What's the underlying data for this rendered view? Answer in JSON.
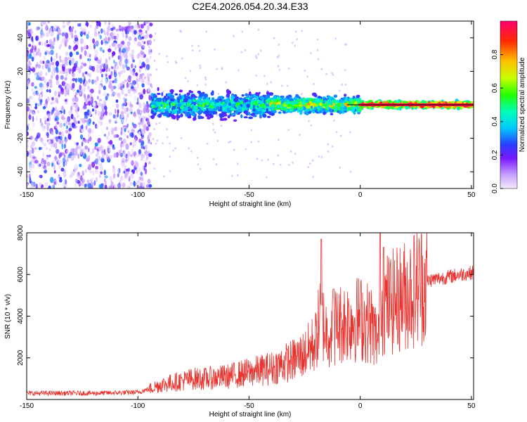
{
  "chart_data": [
    {
      "type": "heatmap",
      "title": "C2E4.2026.054.20.34.E33",
      "xlabel": "Height of straight line (km)",
      "ylabel": "Frequency (Hz)",
      "xlim": [
        -150,
        51
      ],
      "ylim": [
        -50,
        50
      ],
      "xticks": [
        "-150",
        "-100",
        "-50",
        "0",
        "50"
      ],
      "yticks": [
        "40",
        "20",
        "0",
        "-20",
        "-40"
      ],
      "colorbar": {
        "label": "Normalized spectral amplitude",
        "range": [
          0,
          1
        ],
        "ticks": [
          "0.0",
          "0.2",
          "0.4",
          "0.6",
          "0.8"
        ]
      },
      "regions": [
        {
          "name": "noise",
          "x_range": [
            -150,
            -94
          ],
          "freq_range": [
            -50,
            50
          ],
          "amplitude": 0.2
        },
        {
          "name": "onset",
          "x_range": [
            -94,
            -40
          ],
          "freq_half_width": 8,
          "amplitude": 0.45
        },
        {
          "name": "transition",
          "x_range": [
            -40,
            0
          ],
          "freq_half_width": 5,
          "amplitude": 0.6
        },
        {
          "name": "steady",
          "x_range": [
            0,
            51
          ],
          "freq_half_width": 2,
          "amplitude": 0.95
        }
      ]
    },
    {
      "type": "line",
      "xlabel": "Height of straight line (km)",
      "ylabel": "SNR (10 * v/v)",
      "xlim": [
        -150,
        51
      ],
      "ylim": [
        0,
        8000
      ],
      "xticks": [
        "-150",
        "-100",
        "-50",
        "0",
        "50"
      ],
      "yticks": [
        "2000",
        "4000",
        "6000",
        "8000"
      ],
      "color": "#e8332f",
      "series": [
        {
          "name": "SNR",
          "x": [
            -150,
            -140,
            -130,
            -120,
            -110,
            -100,
            -95,
            -90,
            -85,
            -80,
            -75,
            -70,
            -65,
            -60,
            -55,
            -50,
            -45,
            -40,
            -35,
            -30,
            -25,
            -20,
            -18,
            -15,
            -10,
            -5,
            0,
            5,
            8,
            10,
            15,
            20,
            25,
            30,
            35,
            40,
            45,
            51
          ],
          "y": [
            300,
            300,
            300,
            300,
            320,
            350,
            500,
            700,
            800,
            900,
            1000,
            1000,
            1050,
            1100,
            1200,
            1300,
            1400,
            1500,
            1700,
            1900,
            2200,
            2800,
            4000,
            3200,
            3600,
            3800,
            3900,
            3600,
            2800,
            4500,
            4700,
            5000,
            5400,
            5700,
            5800,
            5900,
            6000,
            6100
          ]
        }
      ],
      "spikes": [
        {
          "x": -17.5,
          "y": 7700
        },
        {
          "x": -12,
          "y": 5300
        },
        {
          "x": 9,
          "y": 8000
        },
        {
          "x": 10.5,
          "y": 7300
        }
      ]
    }
  ]
}
